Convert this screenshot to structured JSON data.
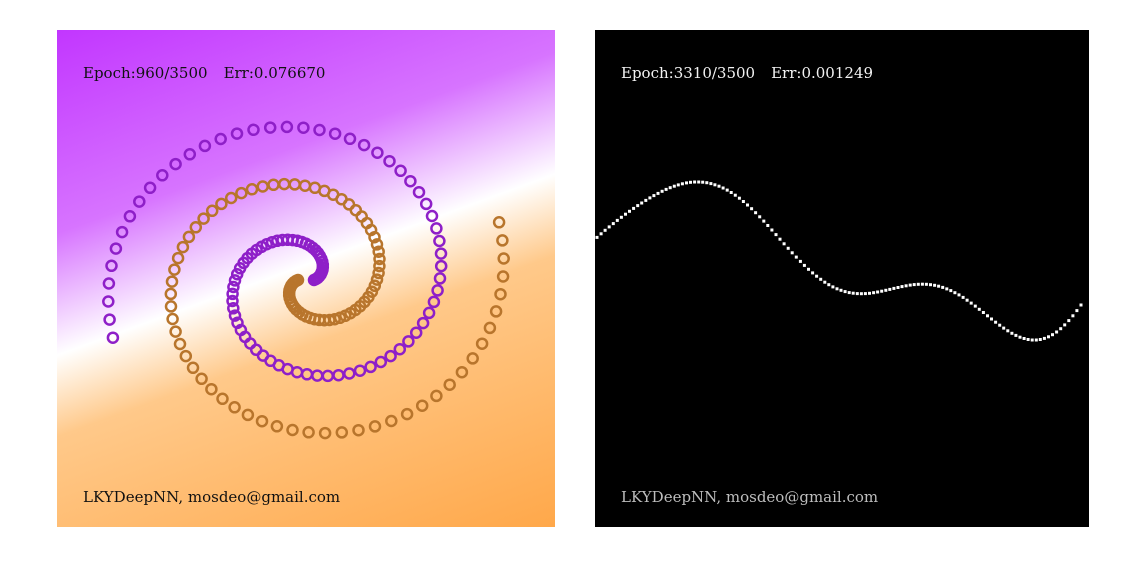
{
  "left_panel": {
    "epoch_label": "Epoch:960/3500",
    "err_label": "Err:0.076670",
    "footer": "LKYDeepNN, mosdeo@gmail.com",
    "colors": {
      "class_a_region": "#c236ff",
      "class_b_region": "#ffa84a",
      "boundary": "#ffffff",
      "class_a_points": "#8e1fc8",
      "class_b_points": "#b8752c"
    }
  },
  "right_panel": {
    "epoch_label": "Epoch:3310/3500",
    "err_label": "Err:0.001249",
    "footer": "LKYDeepNN, mosdeo@gmail.com",
    "colors": {
      "background": "#000000",
      "points": "#ffffff"
    }
  }
}
